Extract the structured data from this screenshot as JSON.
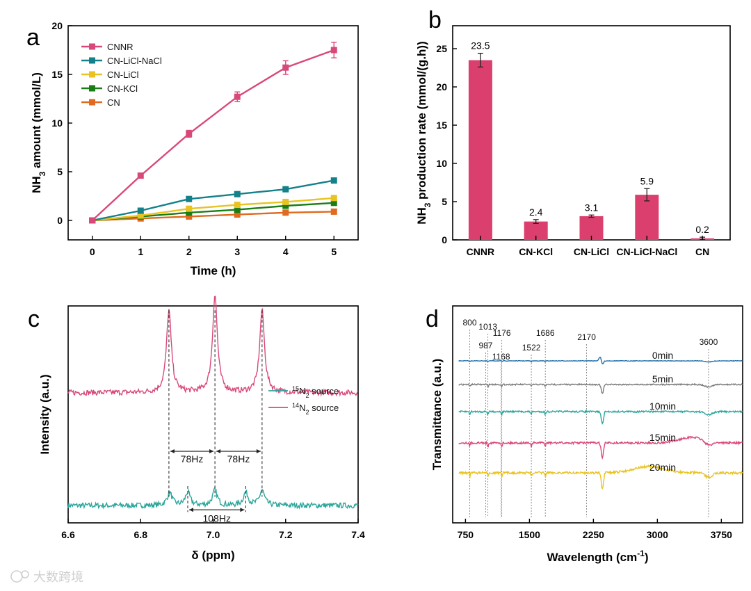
{
  "chart_data": [
    {
      "panel": "a",
      "type": "line",
      "xlabel": "Time (h)",
      "ylabel_parts": [
        "NH",
        "3",
        " amount (mmol/L)"
      ],
      "x": [
        0,
        1,
        2,
        3,
        4,
        5
      ],
      "xlim": [
        -0.5,
        5.5
      ],
      "ylim": [
        -2,
        20
      ],
      "xticks": [
        0,
        1,
        2,
        3,
        4,
        5
      ],
      "yticks": [
        0,
        5,
        10,
        15,
        20
      ],
      "legend_position": "top-left",
      "series": [
        {
          "name": "CNNR",
          "color": "#d9487a",
          "values": [
            0,
            4.6,
            8.9,
            12.7,
            15.7,
            17.5
          ],
          "errors": [
            0,
            0.2,
            0.35,
            0.5,
            0.7,
            0.8
          ]
        },
        {
          "name": "CN-LiCl-NaCl",
          "color": "#13808a",
          "values": [
            0,
            1.0,
            2.2,
            2.7,
            3.2,
            4.1
          ],
          "errors": [
            0,
            0,
            0,
            0,
            0,
            0
          ]
        },
        {
          "name": "CN-LiCl",
          "color": "#e8c321",
          "values": [
            0,
            0.5,
            1.2,
            1.6,
            1.9,
            2.3
          ],
          "errors": [
            0,
            0,
            0,
            0,
            0,
            0
          ]
        },
        {
          "name": "CN-KCl",
          "color": "#1a7d15",
          "values": [
            0,
            0.4,
            0.8,
            1.1,
            1.5,
            1.8
          ],
          "errors": [
            0,
            0,
            0,
            0,
            0,
            0
          ]
        },
        {
          "name": "CN",
          "color": "#e06a1d",
          "values": [
            0,
            0.2,
            0.4,
            0.6,
            0.8,
            0.9
          ],
          "errors": [
            0,
            0,
            0,
            0,
            0,
            0
          ]
        }
      ]
    },
    {
      "panel": "b",
      "type": "bar",
      "ylabel_parts": [
        "NH",
        "3",
        " production rate (mmol/(g.h))"
      ],
      "categories": [
        "CNNR",
        "CN-KCl",
        "CN-LiCl",
        "CN-LiCl-NaCl",
        "CN"
      ],
      "values": [
        23.5,
        2.4,
        3.1,
        5.9,
        0.2
      ],
      "value_labels": [
        "23.5",
        "2.4",
        "3.1",
        "5.9",
        "0.2"
      ],
      "errors": [
        0.9,
        0.25,
        0.15,
        0.8,
        0.15
      ],
      "ylim": [
        0,
        28
      ],
      "yticks": [
        0,
        5,
        10,
        15,
        20,
        25
      ],
      "bar_color": "#db3f6e"
    },
    {
      "panel": "c",
      "type": "line",
      "xlabel_parts": [
        "δ",
        "  (ppm)"
      ],
      "ylabel": "Intensity (a.u.)",
      "xlim": [
        6.6,
        7.4
      ],
      "xticks": [
        6.6,
        6.8,
        7.0,
        7.2,
        7.4
      ],
      "legend_position": "center-right",
      "series": [
        {
          "name_parts": [
            "15",
            "N",
            "2",
            " source"
          ],
          "color": "#2aa59b",
          "peaks_ppm": [
            6.88,
            6.93,
            7.005,
            7.09,
            7.135
          ],
          "offset": 0.08
        },
        {
          "name_parts": [
            "14",
            "N",
            "2",
            " source"
          ],
          "color": "#d9487a",
          "peaks_ppm": [
            6.878,
            7.005,
            7.135
          ],
          "offset": 0.6
        }
      ],
      "annotations": [
        {
          "text": "78Hz",
          "from": 6.878,
          "to": 7.005
        },
        {
          "text": "78Hz",
          "from": 7.005,
          "to": 7.135
        },
        {
          "text": "108Hz",
          "from": 6.93,
          "to": 7.09
        }
      ]
    },
    {
      "panel": "d",
      "type": "line",
      "xlabel_parts": [
        "Wavelength (cm",
        "-1",
        ")"
      ],
      "ylabel": "Transmittance (a.u.)",
      "xlim": [
        600,
        4000
      ],
      "xticks": [
        750,
        1500,
        2250,
        3000,
        3750
      ],
      "reference_lines": [
        800,
        987,
        1013,
        1168,
        1176,
        1522,
        1686,
        2170,
        3600
      ],
      "reference_labels": [
        "800",
        "987",
        "1013",
        "1168",
        "1176",
        "1522",
        "1686",
        "2170",
        "3600"
      ],
      "series": [
        {
          "name": "0min",
          "color": "#1f6ea8"
        },
        {
          "name": "5min",
          "color": "#7a7a7a"
        },
        {
          "name": "10min",
          "color": "#2aa59b"
        },
        {
          "name": "15min",
          "color": "#d9487a"
        },
        {
          "name": "20min",
          "color": "#e8c321"
        }
      ]
    }
  ],
  "panel_labels": [
    "a",
    "b",
    "c",
    "d"
  ],
  "watermark": "大数跨境"
}
